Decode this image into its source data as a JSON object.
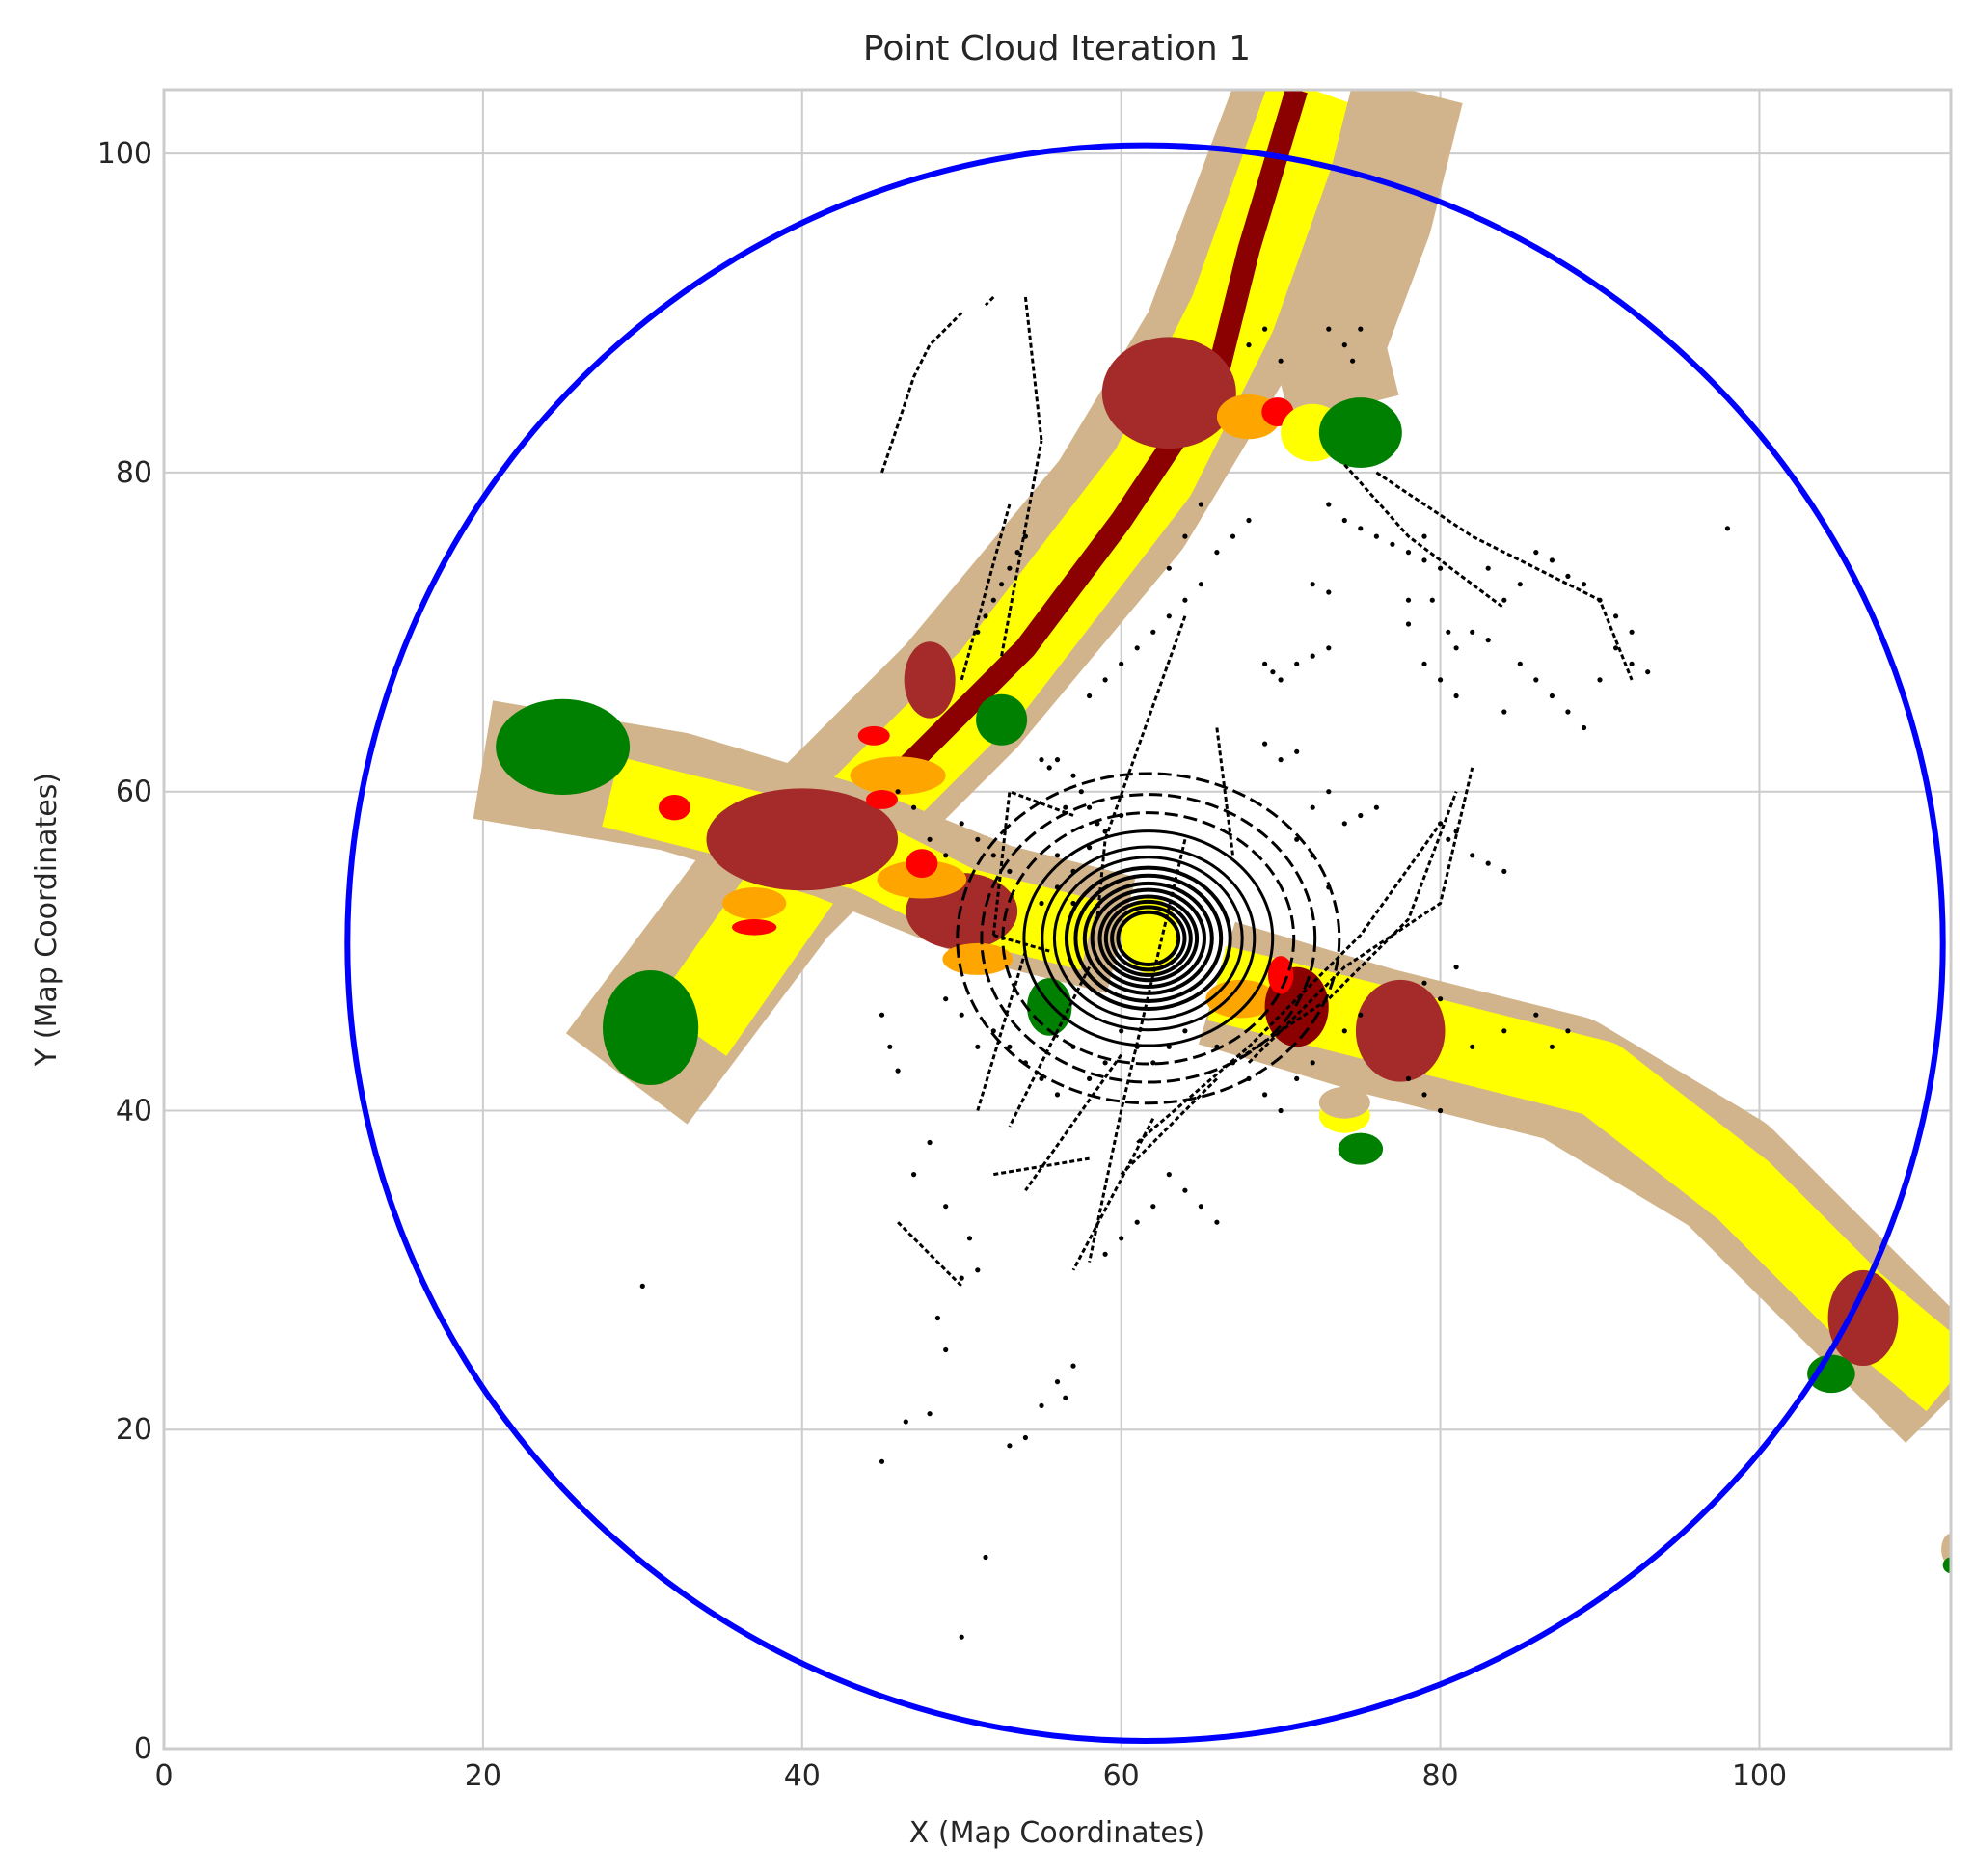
{
  "chart_data": {
    "type": "scatter",
    "title": "Point Cloud Iteration 1",
    "xlabel": "X (Map Coordinates)",
    "ylabel": "Y (Map Coordinates)",
    "xlim": [
      0,
      112
    ],
    "ylim": [
      0,
      104
    ],
    "xticks": [
      0,
      20,
      40,
      60,
      80,
      100
    ],
    "yticks": [
      0,
      20,
      40,
      60,
      80,
      100
    ],
    "xtick_labels": [
      "0",
      "20",
      "40",
      "60",
      "80",
      "100"
    ],
    "ytick_labels": [
      "0",
      "20",
      "40",
      "60",
      "80",
      "100"
    ],
    "grid": true,
    "colors": {
      "circle": "#0000ff",
      "points": "#000000",
      "tan": "#d2b48c",
      "yellow": "#ffff00",
      "darkred": "#8b0000",
      "brown": "#a52a2a",
      "orange": "#ffa500",
      "red": "#ff0000",
      "green": "#008000"
    },
    "circle": {
      "center": [
        61.5,
        50.5
      ],
      "radius": 50
    },
    "road_segments": [
      {
        "class": "tan",
        "width": 9.5,
        "points": [
          [
            29,
            42
          ],
          [
            38,
            54
          ],
          [
            50,
            66
          ],
          [
            60,
            78
          ],
          [
            66,
            88
          ],
          [
            72,
            104
          ]
        ]
      },
      {
        "class": "yellow",
        "width": 5.5,
        "points": [
          [
            33,
            45
          ],
          [
            40,
            55
          ],
          [
            52,
            67
          ],
          [
            62,
            80
          ],
          [
            67,
            90
          ],
          [
            72,
            104
          ]
        ]
      },
      {
        "class": "darkred",
        "width": 1.4,
        "points": [
          [
            46,
            61
          ],
          [
            54,
            69
          ],
          [
            60,
            77
          ],
          [
            66,
            86
          ],
          [
            68,
            94
          ],
          [
            71,
            104
          ]
        ]
      },
      {
        "class": "tan",
        "width": 7.0,
        "points": [
          [
            78,
            104
          ],
          [
            76,
            96
          ],
          [
            73,
            88
          ],
          [
            74,
            84
          ]
        ]
      },
      {
        "class": "tan",
        "width": 7.5,
        "points": [
          [
            20,
            62
          ],
          [
            32,
            60
          ],
          [
            42,
            57
          ],
          [
            52,
            53
          ],
          [
            60,
            51
          ]
        ]
      },
      {
        "class": "yellow",
        "width": 4.5,
        "points": [
          [
            28,
            60
          ],
          [
            36,
            58
          ],
          [
            44,
            56
          ],
          [
            50,
            53
          ],
          [
            58,
            51
          ]
        ]
      },
      {
        "class": "tan",
        "width": 8.0,
        "points": [
          [
            66,
            48
          ],
          [
            76,
            45
          ],
          [
            88,
            42
          ],
          [
            98,
            36
          ],
          [
            106,
            28
          ],
          [
            112,
            22
          ]
        ]
      },
      {
        "class": "yellow",
        "width": 4.8,
        "points": [
          [
            66,
            48
          ],
          [
            78,
            45
          ],
          [
            90,
            42
          ],
          [
            99,
            35
          ],
          [
            106,
            28
          ],
          [
            112,
            23
          ]
        ]
      }
    ],
    "blobs": [
      {
        "class": "brown",
        "x": 63,
        "y": 85,
        "rx": 4.2,
        "ry": 3.5
      },
      {
        "class": "brown",
        "x": 40,
        "y": 57,
        "rx": 6.0,
        "ry": 3.2
      },
      {
        "class": "brown",
        "x": 50,
        "y": 52.5,
        "rx": 3.5,
        "ry": 2.4
      },
      {
        "class": "brown",
        "x": 77.5,
        "y": 45,
        "rx": 2.8,
        "ry": 3.2
      },
      {
        "class": "brown",
        "x": 106.5,
        "y": 27,
        "rx": 2.2,
        "ry": 3.0
      },
      {
        "class": "brown",
        "x": 48,
        "y": 67,
        "rx": 1.6,
        "ry": 2.4
      },
      {
        "class": "orange",
        "x": 68,
        "y": 83.5,
        "rx": 2.0,
        "ry": 1.4
      },
      {
        "class": "orange",
        "x": 46,
        "y": 61,
        "rx": 3.0,
        "ry": 1.2
      },
      {
        "class": "orange",
        "x": 47.5,
        "y": 54.5,
        "rx": 2.8,
        "ry": 1.2
      },
      {
        "class": "orange",
        "x": 37,
        "y": 53,
        "rx": 2.0,
        "ry": 1.0
      },
      {
        "class": "orange",
        "x": 51,
        "y": 49.5,
        "rx": 2.2,
        "ry": 1.0
      },
      {
        "class": "orange",
        "x": 67.5,
        "y": 47,
        "rx": 2.2,
        "ry": 1.2
      },
      {
        "class": "darkred",
        "x": 71,
        "y": 46.5,
        "rx": 2.0,
        "ry": 2.5
      },
      {
        "class": "red",
        "x": 69.8,
        "y": 83.8,
        "rx": 1.0,
        "ry": 0.9
      },
      {
        "class": "red",
        "x": 32,
        "y": 59,
        "rx": 1.0,
        "ry": 0.8
      },
      {
        "class": "red",
        "x": 45,
        "y": 59.5,
        "rx": 1.0,
        "ry": 0.6
      },
      {
        "class": "red",
        "x": 44.5,
        "y": 63.5,
        "rx": 1.0,
        "ry": 0.6
      },
      {
        "class": "red",
        "x": 47.5,
        "y": 55.5,
        "rx": 1.0,
        "ry": 0.9
      },
      {
        "class": "red",
        "x": 37,
        "y": 51.5,
        "rx": 1.4,
        "ry": 0.5
      },
      {
        "class": "red",
        "x": 70,
        "y": 48.5,
        "rx": 0.8,
        "ry": 1.2
      },
      {
        "class": "red",
        "x": 61.5,
        "y": 50.5,
        "rx": 0.6,
        "ry": 0.8
      },
      {
        "class": "yellow",
        "x": 61.8,
        "y": 51,
        "rx": 1.8,
        "ry": 2.4
      },
      {
        "class": "yellow",
        "x": 74,
        "y": 39.7,
        "rx": 1.6,
        "ry": 1.1
      },
      {
        "class": "yellow",
        "x": 72,
        "y": 82.5,
        "rx": 2.0,
        "ry": 1.8
      },
      {
        "class": "tan",
        "x": 74,
        "y": 40.5,
        "rx": 1.6,
        "ry": 1.0
      },
      {
        "class": "tan",
        "x": 112,
        "y": 12.5,
        "rx": 0.6,
        "ry": 1.0
      },
      {
        "class": "green",
        "x": 25,
        "y": 62.8,
        "rx": 4.2,
        "ry": 3.0
      },
      {
        "class": "green",
        "x": 30.5,
        "y": 45.2,
        "rx": 3.0,
        "ry": 3.6
      },
      {
        "class": "green",
        "x": 75,
        "y": 82.5,
        "rx": 2.6,
        "ry": 2.2
      },
      {
        "class": "green",
        "x": 52.5,
        "y": 64.5,
        "rx": 1.6,
        "ry": 1.6
      },
      {
        "class": "green",
        "x": 75,
        "y": 37.6,
        "rx": 1.4,
        "ry": 1.0
      },
      {
        "class": "green",
        "x": 104.5,
        "y": 23.5,
        "rx": 1.5,
        "ry": 1.2
      },
      {
        "class": "green",
        "x": 55.5,
        "y": 46.5,
        "rx": 1.4,
        "ry": 1.8
      },
      {
        "class": "green",
        "x": 112,
        "y": 11.5,
        "rx": 0.5,
        "ry": 0.5
      }
    ],
    "rings": {
      "center": [
        61.7,
        50.8
      ],
      "radii": [
        2.0,
        2.4,
        2.8,
        3.2,
        3.7,
        4.2,
        4.8,
        5.4,
        6.2,
        7.0,
        8.2,
        9.6,
        11.0,
        12.6
      ]
    },
    "point_lines": [
      [
        [
          52,
          51
        ],
        [
          53,
          60
        ],
        [
          57,
          58.5
        ]
      ],
      [
        [
          52,
          51
        ],
        [
          55.5,
          50
        ]
      ],
      [
        [
          54,
          50
        ],
        [
          51,
          40
        ]
      ],
      [
        [
          58,
          49
        ],
        [
          53,
          39
        ]
      ],
      [
        [
          60,
          43.5
        ],
        [
          54,
          35
        ]
      ],
      [
        [
          62,
          39.5
        ],
        [
          57,
          30
        ]
      ],
      [
        [
          64,
          57
        ],
        [
          60,
          40
        ],
        [
          58,
          30.5
        ]
      ],
      [
        [
          66,
          42
        ],
        [
          60,
          36
        ]
      ],
      [
        [
          64,
          71
        ],
        [
          59,
          57
        ],
        [
          58.5,
          52
        ]
      ],
      [
        [
          66,
          64
        ],
        [
          67,
          56
        ]
      ],
      [
        [
          68,
          43
        ],
        [
          71,
          46
        ],
        [
          74,
          49
        ],
        [
          80,
          53
        ],
        [
          82,
          61.5
        ]
      ],
      [
        [
          67,
          43
        ],
        [
          73,
          47
        ],
        [
          78,
          52
        ],
        [
          81,
          60
        ]
      ],
      [
        [
          61,
          38
        ],
        [
          68,
          44
        ],
        [
          75,
          51
        ],
        [
          80,
          58
        ]
      ],
      [
        [
          52,
          36
        ],
        [
          58,
          37
        ]
      ],
      [
        [
          52.5,
          68.5
        ],
        [
          55,
          82
        ]
      ],
      [
        [
          50,
          67
        ],
        [
          53,
          78
        ]
      ],
      [
        [
          74,
          80.5
        ],
        [
          78,
          76
        ],
        [
          84,
          71.5
        ]
      ],
      [
        [
          76,
          80
        ],
        [
          82,
          76
        ],
        [
          90,
          72
        ],
        [
          92,
          67
        ]
      ],
      [
        [
          46,
          33
        ],
        [
          50,
          29
        ]
      ],
      [
        [
          52,
          91
        ],
        [
          51.5,
          90.5
        ]
      ],
      [
        [
          45,
          80
        ],
        [
          46,
          83
        ],
        [
          47,
          86
        ],
        [
          48,
          88
        ],
        [
          50,
          90
        ]
      ],
      [
        [
          54,
          91
        ],
        [
          55,
          82
        ]
      ]
    ],
    "points": [
      [
        30,
        29
      ],
      [
        50,
        7
      ],
      [
        51.5,
        12
      ],
      [
        45,
        18
      ],
      [
        46.5,
        20.5
      ],
      [
        48,
        21
      ],
      [
        53,
        19
      ],
      [
        54,
        19.5
      ],
      [
        55,
        21.5
      ],
      [
        56,
        23
      ],
      [
        57,
        24
      ],
      [
        56.5,
        22
      ],
      [
        45,
        46
      ],
      [
        45.5,
        44
      ],
      [
        46,
        42.5
      ],
      [
        48,
        38
      ],
      [
        47,
        36
      ],
      [
        49,
        34
      ],
      [
        48.5,
        27
      ],
      [
        49,
        25
      ],
      [
        50.5,
        32
      ],
      [
        51,
        30
      ],
      [
        50,
        29.5
      ],
      [
        98,
        76.5
      ],
      [
        86,
        75
      ],
      [
        87,
        74.5
      ],
      [
        88,
        73.5
      ],
      [
        89,
        73
      ],
      [
        90,
        72
      ],
      [
        91,
        71
      ],
      [
        92,
        70
      ],
      [
        85,
        73
      ],
      [
        83,
        74
      ],
      [
        84,
        72
      ],
      [
        79,
        68
      ],
      [
        80,
        67
      ],
      [
        81,
        66
      ],
      [
        79.5,
        72
      ],
      [
        80,
        74
      ],
      [
        79,
        76
      ],
      [
        80.5,
        70
      ],
      [
        81,
        69
      ],
      [
        78,
        70.5
      ],
      [
        72,
        73
      ],
      [
        73,
        72.5
      ],
      [
        78,
        72
      ],
      [
        82,
        70
      ],
      [
        84,
        65
      ],
      [
        83,
        69.5
      ],
      [
        69,
        68
      ],
      [
        69.5,
        67.5
      ],
      [
        70,
        67
      ],
      [
        71,
        68
      ],
      [
        72,
        68.5
      ],
      [
        73,
        69
      ],
      [
        69,
        63
      ],
      [
        70,
        62
      ],
      [
        71,
        62.5
      ],
      [
        68,
        88
      ],
      [
        69,
        89
      ],
      [
        70,
        87
      ],
      [
        73,
        89
      ],
      [
        74,
        88
      ],
      [
        75,
        89
      ],
      [
        74.5,
        87
      ],
      [
        80,
        58
      ],
      [
        80.5,
        57
      ],
      [
        81,
        57.5
      ],
      [
        82,
        56
      ],
      [
        83,
        55.5
      ],
      [
        84,
        55
      ],
      [
        81,
        49
      ],
      [
        79,
        48
      ],
      [
        80,
        47
      ],
      [
        78,
        42
      ],
      [
        79,
        41
      ],
      [
        80,
        40
      ],
      [
        82,
        44
      ],
      [
        84,
        45
      ],
      [
        86,
        46
      ],
      [
        87,
        44
      ],
      [
        88,
        45
      ],
      [
        72,
        59
      ],
      [
        73,
        60
      ],
      [
        74,
        58
      ],
      [
        75,
        58.5
      ],
      [
        76,
        59
      ],
      [
        71,
        57
      ],
      [
        72,
        56
      ],
      [
        73,
        54
      ],
      [
        55,
        62
      ],
      [
        55.5,
        61.5
      ],
      [
        56,
        62
      ],
      [
        57,
        61
      ],
      [
        57.5,
        60
      ],
      [
        58,
        59
      ],
      [
        58.5,
        58
      ],
      [
        56.5,
        59
      ],
      [
        50,
        58
      ],
      [
        51,
        57
      ],
      [
        52,
        56
      ],
      [
        53,
        55
      ],
      [
        49,
        56
      ],
      [
        48,
        57
      ],
      [
        47,
        59
      ],
      [
        46,
        60
      ],
      [
        60,
        45
      ],
      [
        61,
        44
      ],
      [
        62,
        43
      ],
      [
        63,
        44
      ],
      [
        64,
        45
      ],
      [
        59,
        43
      ],
      [
        58,
        42
      ],
      [
        57,
        44
      ],
      [
        66,
        44
      ],
      [
        67,
        43
      ],
      [
        68,
        42
      ],
      [
        69,
        41
      ],
      [
        70,
        40
      ],
      [
        71,
        42
      ],
      [
        72,
        43
      ],
      [
        74,
        45
      ],
      [
        75,
        46
      ],
      [
        56,
        56
      ],
      [
        57,
        55
      ],
      [
        58,
        56.5
      ],
      [
        59,
        57.5
      ],
      [
        60,
        58.5
      ],
      [
        57,
        53
      ],
      [
        56,
        54
      ],
      [
        55,
        53
      ],
      [
        52,
        45
      ],
      [
        53,
        44
      ],
      [
        54,
        43
      ],
      [
        55,
        42
      ],
      [
        56,
        41
      ],
      [
        51,
        44
      ],
      [
        50,
        46
      ],
      [
        49,
        47
      ],
      [
        63,
        36
      ],
      [
        64,
        35
      ],
      [
        65,
        34
      ],
      [
        66,
        33
      ],
      [
        62,
        34
      ],
      [
        61,
        33
      ],
      [
        60,
        32
      ],
      [
        59,
        31
      ],
      [
        58,
        66
      ],
      [
        59,
        67
      ],
      [
        60,
        68
      ],
      [
        61,
        69
      ],
      [
        62,
        70
      ],
      [
        63,
        71
      ],
      [
        64,
        72
      ],
      [
        65,
        73
      ],
      [
        66,
        75
      ],
      [
        67,
        76
      ],
      [
        68,
        77
      ],
      [
        65,
        78
      ],
      [
        64,
        76
      ],
      [
        63,
        74
      ],
      [
        73,
        78
      ],
      [
        74,
        77
      ],
      [
        75,
        76.5
      ],
      [
        76,
        76
      ],
      [
        77,
        75.5
      ],
      [
        78,
        75
      ],
      [
        79,
        74.5
      ],
      [
        85,
        68
      ],
      [
        86,
        67
      ],
      [
        87,
        66
      ],
      [
        88,
        65
      ],
      [
        89,
        64
      ],
      [
        90,
        67
      ],
      [
        91,
        69
      ],
      [
        92,
        68
      ],
      [
        93,
        67.5
      ],
      [
        51,
        70
      ],
      [
        51.5,
        71
      ],
      [
        52,
        72
      ],
      [
        52.5,
        73
      ],
      [
        53,
        74
      ],
      [
        53.5,
        75
      ],
      [
        54,
        76
      ]
    ]
  }
}
